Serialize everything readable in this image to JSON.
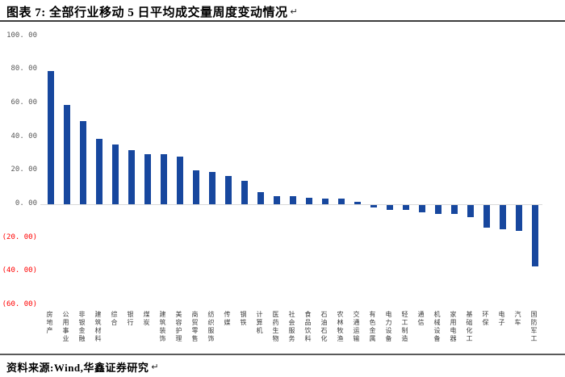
{
  "header": {
    "title": "图表 7: 全部行业移动 5 日平均成交量周度变动情况",
    "return_mark": "↵"
  },
  "footer": {
    "source": "资料来源:Wind,华鑫证券研究",
    "return_mark": "↵"
  },
  "colors": {
    "bar": "#17479e",
    "positive_tick_label": "#595959",
    "negative_tick_label": "#ff0000",
    "zero_axis_line": "#d9d9d9",
    "rule": "#3d3d3d"
  },
  "chart_data": {
    "type": "bar",
    "title": "全部行业移动5日平均成交量周度变动情况",
    "xlabel": "",
    "ylabel": "",
    "ylim": [
      -60,
      100
    ],
    "yticks": [
      100,
      80,
      60,
      40,
      20,
      0,
      -20,
      -40,
      -60
    ],
    "ytick_labels": [
      "100. 00",
      "80. 00",
      "60. 00",
      "40. 00",
      "20. 00",
      "0. 00",
      "(20. 00)",
      "(40. 00)",
      "(60. 00)"
    ],
    "grid": false,
    "legend_position": "none",
    "negative_label_style": "red-parentheses",
    "categories": [
      "房地产",
      "公用事业",
      "非银金融",
      "建筑材料",
      "综合",
      "银行",
      "煤炭",
      "建筑装饰",
      "美容护理",
      "商贸零售",
      "纺织服饰",
      "传媒",
      "钢铁",
      "计算机",
      "医药生物",
      "社会服务",
      "食品饮料",
      "石油石化",
      "农林牧渔",
      "交通运输",
      "有色金属",
      "电力设备",
      "轻工制造",
      "通信",
      "机械设备",
      "家用电器",
      "基础化工",
      "环保",
      "电子",
      "汽车",
      "国防军工"
    ],
    "values": [
      79.0,
      59.0,
      49.5,
      39.0,
      35.5,
      32.0,
      30.0,
      29.7,
      28.3,
      20.3,
      19.2,
      17.0,
      14.0,
      7.0,
      5.0,
      4.6,
      4.0,
      3.6,
      3.4,
      1.6,
      -1.4,
      -2.8,
      -2.7,
      -4.5,
      -5.5,
      -5.5,
      -7.2,
      -13.3,
      -14.5,
      -15.4,
      -36.6
    ]
  }
}
